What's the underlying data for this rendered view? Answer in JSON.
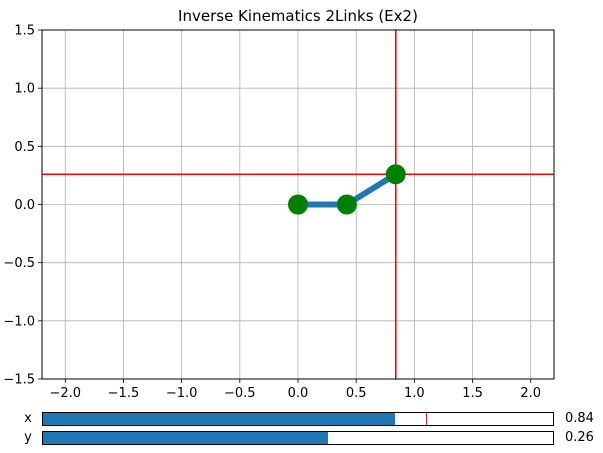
{
  "chart_data": {
    "type": "line",
    "title": "Inverse Kinematics 2Links (Ex2)",
    "xlabel": "",
    "ylabel": "",
    "xlim": [
      -2.2,
      2.2
    ],
    "ylim": [
      -1.5,
      1.5
    ],
    "xticks": [
      -2.0,
      -1.5,
      -1.0,
      -0.5,
      0.0,
      0.5,
      1.0,
      1.5,
      2.0
    ],
    "xtick_labels": [
      "−2.0",
      "−1.5",
      "−1.0",
      "−0.5",
      "0.0",
      "0.5",
      "1.0",
      "1.5",
      "2.0"
    ],
    "yticks": [
      1.5,
      1.0,
      0.5,
      0.0,
      -0.5,
      -1.0,
      -1.5
    ],
    "ytick_labels": [
      "1.5",
      "1.0",
      "0.5",
      "0.0",
      "−0.5",
      "−1.0",
      "−1.5"
    ],
    "grid": true,
    "arm": {
      "x": [
        0.0,
        0.42,
        0.84
      ],
      "y": [
        0.0,
        0.0,
        0.26
      ],
      "link_color": "#1f77b4",
      "joint_color": "#008000"
    },
    "target": {
      "x": 0.84,
      "y": 0.26,
      "color": "#ff0000"
    }
  },
  "sliders": [
    {
      "label": "x",
      "value": 0.84,
      "value_text": "0.84",
      "min": -2.2,
      "max": 2.2,
      "init": 1.1,
      "fill_color": "#1f77b4",
      "init_color": "#d62728"
    },
    {
      "label": "y",
      "value": 0.26,
      "value_text": "0.26",
      "min": -2.2,
      "max": 2.2,
      "fill_color": "#1f77b4"
    }
  ]
}
